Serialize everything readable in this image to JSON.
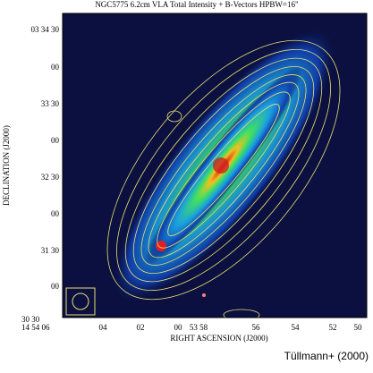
{
  "figure": {
    "title": "NGC5775  6.2cm  VLA  Total Intensity + B-Vectors  HPBW=16\"",
    "y_axis_label": "DECLINATION (J2000)",
    "x_axis_label": "RIGHT ASCENSION (J2000)",
    "y_tick_labels": [
      "03 34 30",
      "00",
      "33 30",
      "00",
      "32 30",
      "00",
      "31 30",
      "00",
      "30 30"
    ],
    "x_tick_labels": [
      "14 54 06",
      "04",
      "02",
      "00",
      "53 58",
      "56",
      "54",
      "52",
      "50"
    ],
    "credit": "Tüllmann+ (2000)"
  }
}
